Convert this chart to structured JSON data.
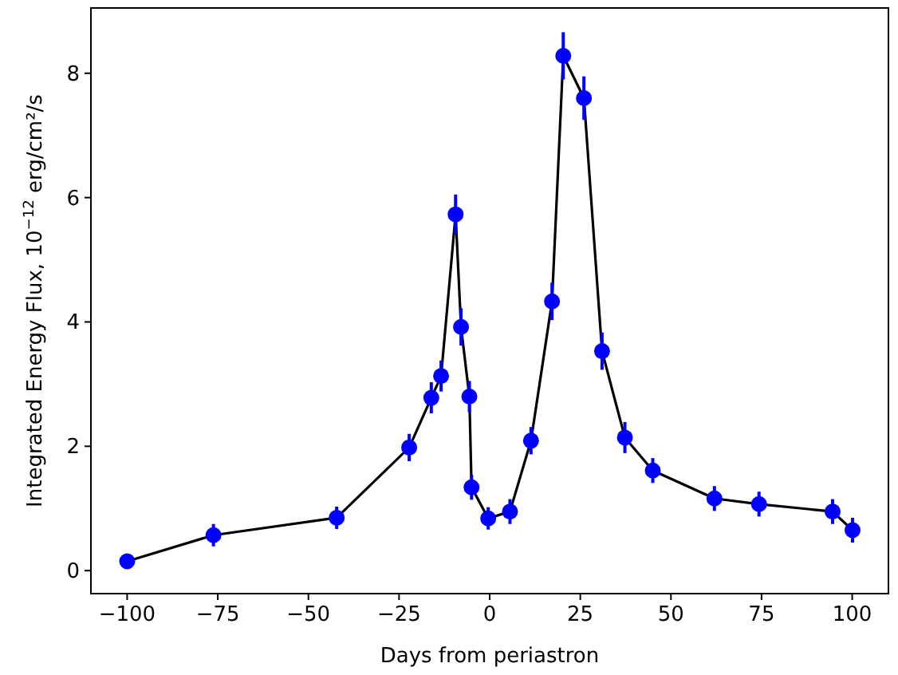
{
  "chart_data": {
    "type": "line",
    "xlabel": "Days from periastron",
    "ylabel": "Integrated Energy Flux, 10$^{−12}$ erg/cm²/s",
    "x": [
      -100,
      -76.2,
      -42.2,
      -22.2,
      -16.1,
      -13.4,
      -9.4,
      -7.9,
      -5.6,
      -5.0,
      -0.4,
      5.6,
      11.4,
      17.2,
      20.3,
      26.0,
      31.0,
      37.3,
      45.0,
      62.0,
      74.3,
      94.6,
      100.1
    ],
    "series": [
      {
        "color": "#0000ff",
        "values": [
          0.15,
          0.57,
          0.85,
          1.98,
          2.78,
          3.13,
          5.73,
          3.92,
          2.8,
          1.34,
          0.84,
          0.95,
          2.09,
          4.33,
          8.28,
          7.6,
          3.53,
          2.14,
          1.61,
          1.16,
          1.07,
          0.95,
          0.65
        ],
        "errors": [
          0.12,
          0.18,
          0.18,
          0.22,
          0.25,
          0.25,
          0.32,
          0.3,
          0.25,
          0.2,
          0.18,
          0.2,
          0.22,
          0.3,
          0.38,
          0.35,
          0.3,
          0.25,
          0.2,
          0.2,
          0.2,
          0.2,
          0.2
        ]
      }
    ],
    "xlim": [
      -110,
      110
    ],
    "ylim": [
      -0.37,
      9.05
    ],
    "xticks": [
      {
        "value": -100,
        "label": "−100"
      },
      {
        "value": -75,
        "label": "−75"
      },
      {
        "value": -50,
        "label": "−50"
      },
      {
        "value": -25,
        "label": "−25"
      },
      0,
      25,
      50,
      75,
      100
    ],
    "yticks": [
      0,
      2,
      4,
      6,
      8
    ],
    "grid": false,
    "marker": "circle",
    "line_style": "solid"
  }
}
